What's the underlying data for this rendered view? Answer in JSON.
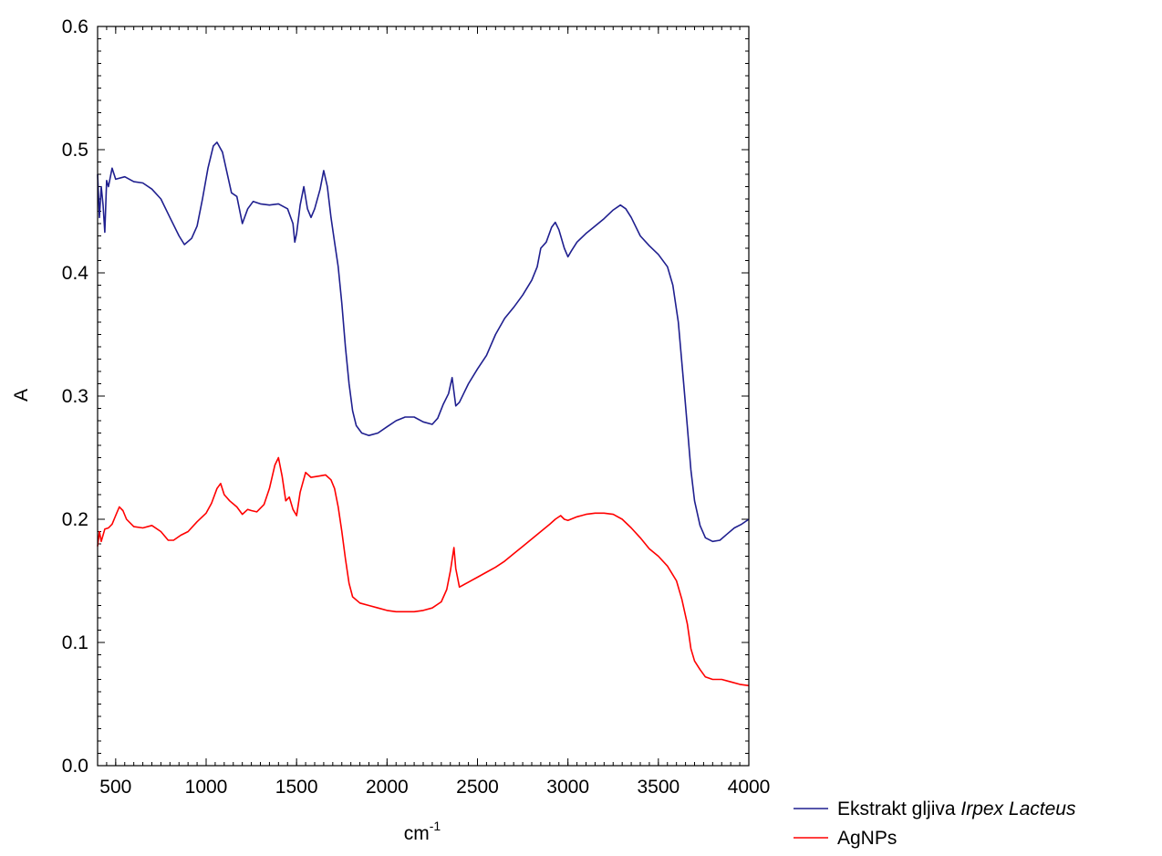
{
  "chart_data": {
    "type": "line",
    "title": "",
    "xlabel": "cm",
    "xlabel_superscript": "-1",
    "ylabel": "A",
    "xlim": [
      400,
      4000
    ],
    "ylim": [
      0.0,
      0.6
    ],
    "x_ticks": [
      "500",
      "1000",
      "1500",
      "2000",
      "2500",
      "3000",
      "3500",
      "4000"
    ],
    "y_ticks": [
      "0.0",
      "0.1",
      "0.2",
      "0.3",
      "0.4",
      "0.5",
      "0.6"
    ],
    "grid": false,
    "legend": {
      "position": "bottom-right outside"
    },
    "series": [
      {
        "name": "Ekstrakt gljiva Irpex Lacteus",
        "legend_parts": [
          {
            "text": "Ekstrakt gljiva ",
            "italic": false
          },
          {
            "text": "Irpex Lacteus",
            "italic": true
          }
        ],
        "color": "#1f1f8f",
        "points": [
          [
            400,
            0.48
          ],
          [
            410,
            0.445
          ],
          [
            420,
            0.47
          ],
          [
            430,
            0.455
          ],
          [
            440,
            0.433
          ],
          [
            450,
            0.475
          ],
          [
            460,
            0.47
          ],
          [
            480,
            0.485
          ],
          [
            500,
            0.476
          ],
          [
            550,
            0.478
          ],
          [
            600,
            0.474
          ],
          [
            650,
            0.473
          ],
          [
            700,
            0.468
          ],
          [
            750,
            0.46
          ],
          [
            800,
            0.445
          ],
          [
            850,
            0.43
          ],
          [
            880,
            0.423
          ],
          [
            920,
            0.428
          ],
          [
            950,
            0.438
          ],
          [
            980,
            0.46
          ],
          [
            1010,
            0.485
          ],
          [
            1040,
            0.503
          ],
          [
            1060,
            0.506
          ],
          [
            1090,
            0.498
          ],
          [
            1110,
            0.485
          ],
          [
            1140,
            0.465
          ],
          [
            1170,
            0.462
          ],
          [
            1200,
            0.44
          ],
          [
            1230,
            0.452
          ],
          [
            1260,
            0.458
          ],
          [
            1300,
            0.456
          ],
          [
            1350,
            0.455
          ],
          [
            1400,
            0.456
          ],
          [
            1450,
            0.452
          ],
          [
            1480,
            0.44
          ],
          [
            1490,
            0.425
          ],
          [
            1500,
            0.432
          ],
          [
            1520,
            0.455
          ],
          [
            1540,
            0.47
          ],
          [
            1560,
            0.452
          ],
          [
            1580,
            0.445
          ],
          [
            1600,
            0.452
          ],
          [
            1630,
            0.468
          ],
          [
            1650,
            0.483
          ],
          [
            1670,
            0.47
          ],
          [
            1690,
            0.445
          ],
          [
            1710,
            0.425
          ],
          [
            1730,
            0.405
          ],
          [
            1750,
            0.375
          ],
          [
            1770,
            0.34
          ],
          [
            1790,
            0.31
          ],
          [
            1810,
            0.288
          ],
          [
            1830,
            0.276
          ],
          [
            1860,
            0.27
          ],
          [
            1900,
            0.268
          ],
          [
            1950,
            0.27
          ],
          [
            2000,
            0.275
          ],
          [
            2050,
            0.28
          ],
          [
            2100,
            0.283
          ],
          [
            2150,
            0.283
          ],
          [
            2200,
            0.279
          ],
          [
            2250,
            0.277
          ],
          [
            2280,
            0.282
          ],
          [
            2310,
            0.293
          ],
          [
            2340,
            0.302
          ],
          [
            2360,
            0.315
          ],
          [
            2380,
            0.292
          ],
          [
            2400,
            0.295
          ],
          [
            2450,
            0.31
          ],
          [
            2500,
            0.322
          ],
          [
            2550,
            0.333
          ],
          [
            2600,
            0.35
          ],
          [
            2650,
            0.363
          ],
          [
            2700,
            0.372
          ],
          [
            2750,
            0.382
          ],
          [
            2800,
            0.394
          ],
          [
            2830,
            0.405
          ],
          [
            2850,
            0.42
          ],
          [
            2880,
            0.425
          ],
          [
            2910,
            0.437
          ],
          [
            2930,
            0.441
          ],
          [
            2950,
            0.435
          ],
          [
            2980,
            0.42
          ],
          [
            3000,
            0.413
          ],
          [
            3020,
            0.418
          ],
          [
            3050,
            0.425
          ],
          [
            3100,
            0.432
          ],
          [
            3150,
            0.438
          ],
          [
            3200,
            0.444
          ],
          [
            3250,
            0.451
          ],
          [
            3290,
            0.455
          ],
          [
            3320,
            0.452
          ],
          [
            3350,
            0.445
          ],
          [
            3400,
            0.43
          ],
          [
            3450,
            0.422
          ],
          [
            3500,
            0.415
          ],
          [
            3550,
            0.405
          ],
          [
            3580,
            0.39
          ],
          [
            3610,
            0.36
          ],
          [
            3640,
            0.31
          ],
          [
            3660,
            0.275
          ],
          [
            3680,
            0.24
          ],
          [
            3700,
            0.215
          ],
          [
            3730,
            0.195
          ],
          [
            3760,
            0.185
          ],
          [
            3800,
            0.182
          ],
          [
            3840,
            0.183
          ],
          [
            3880,
            0.188
          ],
          [
            3920,
            0.193
          ],
          [
            3960,
            0.196
          ],
          [
            4000,
            0.2
          ]
        ]
      },
      {
        "name": "AgNPs",
        "color": "#ff0000",
        "points": [
          [
            400,
            0.178
          ],
          [
            410,
            0.19
          ],
          [
            420,
            0.182
          ],
          [
            440,
            0.192
          ],
          [
            460,
            0.193
          ],
          [
            480,
            0.196
          ],
          [
            500,
            0.203
          ],
          [
            520,
            0.21
          ],
          [
            540,
            0.207
          ],
          [
            560,
            0.2
          ],
          [
            600,
            0.194
          ],
          [
            650,
            0.193
          ],
          [
            700,
            0.195
          ],
          [
            750,
            0.19
          ],
          [
            790,
            0.183
          ],
          [
            820,
            0.183
          ],
          [
            860,
            0.187
          ],
          [
            900,
            0.19
          ],
          [
            950,
            0.198
          ],
          [
            1000,
            0.205
          ],
          [
            1030,
            0.213
          ],
          [
            1060,
            0.225
          ],
          [
            1080,
            0.229
          ],
          [
            1100,
            0.22
          ],
          [
            1130,
            0.215
          ],
          [
            1170,
            0.21
          ],
          [
            1200,
            0.204
          ],
          [
            1230,
            0.208
          ],
          [
            1250,
            0.207
          ],
          [
            1280,
            0.206
          ],
          [
            1320,
            0.212
          ],
          [
            1350,
            0.225
          ],
          [
            1380,
            0.244
          ],
          [
            1400,
            0.25
          ],
          [
            1420,
            0.235
          ],
          [
            1440,
            0.215
          ],
          [
            1460,
            0.218
          ],
          [
            1480,
            0.208
          ],
          [
            1500,
            0.203
          ],
          [
            1520,
            0.222
          ],
          [
            1550,
            0.238
          ],
          [
            1580,
            0.234
          ],
          [
            1620,
            0.235
          ],
          [
            1660,
            0.236
          ],
          [
            1690,
            0.232
          ],
          [
            1710,
            0.225
          ],
          [
            1730,
            0.21
          ],
          [
            1750,
            0.19
          ],
          [
            1770,
            0.168
          ],
          [
            1790,
            0.148
          ],
          [
            1810,
            0.137
          ],
          [
            1850,
            0.132
          ],
          [
            1900,
            0.13
          ],
          [
            1950,
            0.128
          ],
          [
            2000,
            0.126
          ],
          [
            2050,
            0.125
          ],
          [
            2100,
            0.125
          ],
          [
            2150,
            0.125
          ],
          [
            2200,
            0.126
          ],
          [
            2250,
            0.128
          ],
          [
            2300,
            0.133
          ],
          [
            2330,
            0.143
          ],
          [
            2350,
            0.158
          ],
          [
            2370,
            0.177
          ],
          [
            2380,
            0.16
          ],
          [
            2400,
            0.145
          ],
          [
            2450,
            0.149
          ],
          [
            2500,
            0.153
          ],
          [
            2550,
            0.157
          ],
          [
            2600,
            0.161
          ],
          [
            2650,
            0.166
          ],
          [
            2700,
            0.172
          ],
          [
            2750,
            0.178
          ],
          [
            2800,
            0.184
          ],
          [
            2850,
            0.19
          ],
          [
            2900,
            0.196
          ],
          [
            2930,
            0.2
          ],
          [
            2960,
            0.203
          ],
          [
            2980,
            0.2
          ],
          [
            3000,
            0.199
          ],
          [
            3050,
            0.202
          ],
          [
            3100,
            0.204
          ],
          [
            3150,
            0.205
          ],
          [
            3200,
            0.205
          ],
          [
            3250,
            0.204
          ],
          [
            3300,
            0.2
          ],
          [
            3350,
            0.193
          ],
          [
            3400,
            0.185
          ],
          [
            3450,
            0.176
          ],
          [
            3500,
            0.17
          ],
          [
            3550,
            0.162
          ],
          [
            3600,
            0.15
          ],
          [
            3630,
            0.135
          ],
          [
            3660,
            0.115
          ],
          [
            3680,
            0.095
          ],
          [
            3700,
            0.085
          ],
          [
            3730,
            0.078
          ],
          [
            3760,
            0.072
          ],
          [
            3800,
            0.07
          ],
          [
            3850,
            0.07
          ],
          [
            3900,
            0.068
          ],
          [
            3950,
            0.066
          ],
          [
            4000,
            0.065
          ]
        ]
      }
    ]
  }
}
